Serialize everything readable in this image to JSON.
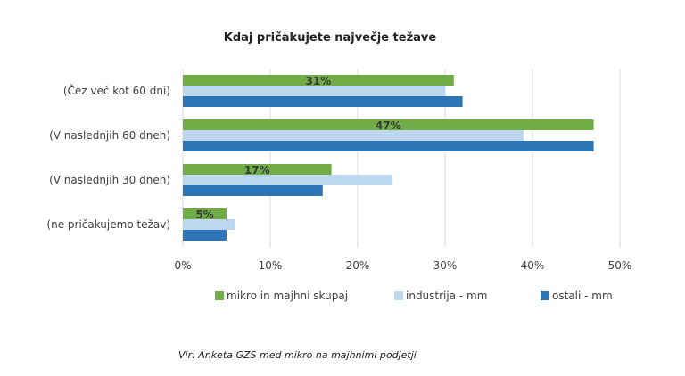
{
  "chart_data": {
    "type": "bar",
    "orientation": "horizontal",
    "title": "Kdaj pričakujete največje težave",
    "categories": [
      "(Čez več kot 60 dni)",
      "(V naslednjih 60 dneh)",
      "(V naslednjih 30 dneh)",
      "(ne pričakujemo težav)"
    ],
    "series": [
      {
        "name": "mikro in majhni skupaj",
        "color": "#70ad47",
        "values": [
          31,
          47,
          17,
          5
        ],
        "data_labels": [
          "31%",
          "47%",
          "17%",
          "5%"
        ]
      },
      {
        "name": "industrija - mm",
        "color": "#bdd7ee",
        "values": [
          30,
          39,
          24,
          6
        ]
      },
      {
        "name": "ostali - mm",
        "color": "#2e75b6",
        "values": [
          32,
          47,
          16,
          5
        ]
      }
    ],
    "xlim": [
      0,
      50
    ],
    "x_ticks": [
      "0%",
      "10%",
      "20%",
      "30%",
      "40%",
      "50%"
    ],
    "grid": true,
    "legend_position": "bottom",
    "source": "Vir: Anketa GZS med mikro na majhnimi podjetji"
  }
}
